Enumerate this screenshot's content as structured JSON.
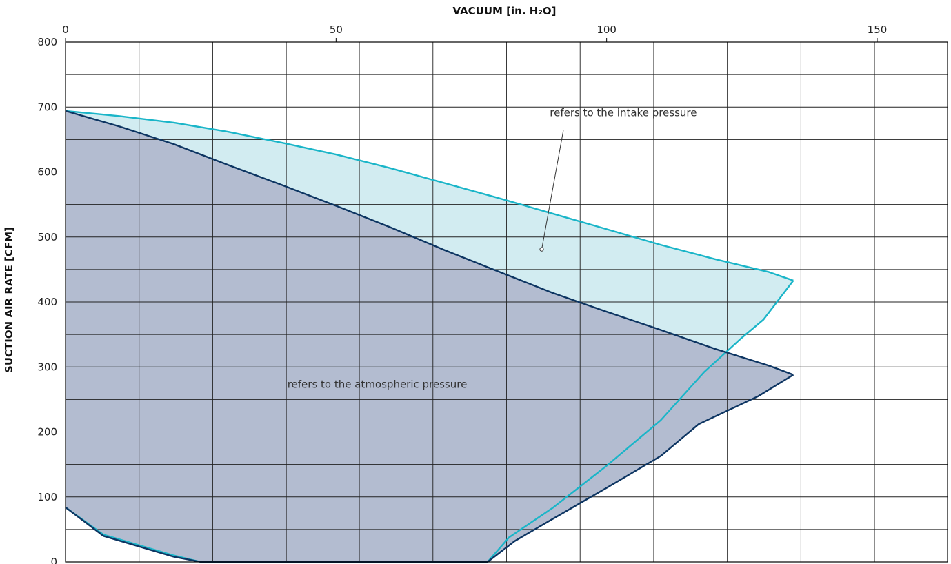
{
  "chart_data": {
    "type": "area",
    "xlabel": "VACUUM  [in. H₂O]",
    "ylabel": "SUCTION AIR RATE  [CFM]",
    "xlim": [
      0,
      163
    ],
    "ylim": [
      0,
      800
    ],
    "x_ticks": [
      0,
      50,
      100,
      150
    ],
    "y_ticks": [
      0,
      100,
      200,
      300,
      400,
      500,
      600,
      700,
      800
    ],
    "grid": true,
    "x_gridlines": [
      0,
      13.6,
      27.2,
      40.8,
      54.3,
      67.9,
      81.5,
      95.1,
      108.7,
      122.3,
      135.9,
      149.5
    ],
    "y_gridlines": [
      0,
      50,
      100,
      150,
      200,
      250,
      300,
      350,
      400,
      450,
      500,
      550,
      600,
      650,
      700,
      750,
      800
    ],
    "series": [
      {
        "color": "#1ab5c8",
        "fill": "#d2ecf1",
        "upper": [
          [
            0,
            694
          ],
          [
            10,
            686
          ],
          [
            20,
            676
          ],
          [
            30,
            662
          ],
          [
            40,
            645
          ],
          [
            50,
            627
          ],
          [
            60,
            606
          ],
          [
            70,
            583
          ],
          [
            80,
            560
          ],
          [
            90,
            536
          ],
          [
            100,
            512
          ],
          [
            110,
            488
          ],
          [
            120,
            466
          ],
          [
            130,
            446
          ],
          [
            134.5,
            433
          ]
        ],
        "lower": [
          [
            0,
            84
          ],
          [
            7,
            42
          ],
          [
            20,
            10
          ],
          [
            25,
            0
          ],
          [
            78,
            0
          ],
          [
            82,
            38
          ],
          [
            90,
            83
          ],
          [
            100,
            148
          ],
          [
            110,
            218
          ],
          [
            118,
            292
          ],
          [
            125,
            345
          ],
          [
            129,
            373
          ],
          [
            134.5,
            433
          ]
        ]
      },
      {
        "color": "#0d3562",
        "fill": "#b3bcd0",
        "upper": [
          [
            0,
            694
          ],
          [
            10,
            670
          ],
          [
            20,
            643
          ],
          [
            30,
            611
          ],
          [
            40,
            580
          ],
          [
            50,
            548
          ],
          [
            60,
            515
          ],
          [
            70,
            480
          ],
          [
            80,
            447
          ],
          [
            90,
            414
          ],
          [
            100,
            385
          ],
          [
            110,
            357
          ],
          [
            120,
            328
          ],
          [
            130,
            302
          ],
          [
            134.5,
            288
          ]
        ],
        "lower": [
          [
            0,
            84
          ],
          [
            7,
            40
          ],
          [
            20,
            8
          ],
          [
            25,
            0
          ],
          [
            78,
            0
          ],
          [
            83,
            32
          ],
          [
            90,
            66
          ],
          [
            100,
            114
          ],
          [
            110,
            163
          ],
          [
            117,
            212
          ],
          [
            128,
            255
          ],
          [
            134.5,
            288
          ]
        ]
      }
    ],
    "annotations": [
      {
        "text": "refers to the intake pressure",
        "x": 89.5,
        "y": 686,
        "point": [
          88,
          481
        ],
        "pointer_from": [
          92,
          664
        ]
      },
      {
        "text": "refers to the atmospheric pressure",
        "x": 41,
        "y": 268
      }
    ]
  }
}
